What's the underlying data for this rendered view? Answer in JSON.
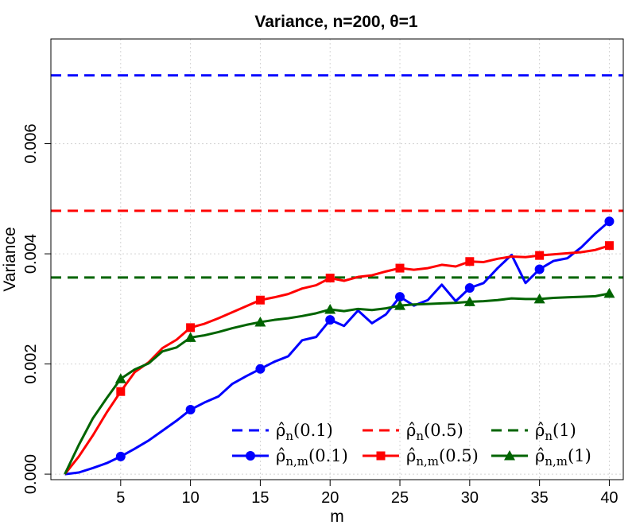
{
  "chart_data": {
    "type": "line",
    "title": "Variance, n=200, θ=1",
    "xlabel": "m",
    "ylabel": "Variance",
    "xlim": [
      0,
      41
    ],
    "ylim": [
      -0.0001,
      0.0079
    ],
    "x_ticks": [
      5,
      10,
      15,
      20,
      25,
      30,
      35,
      40
    ],
    "x_tick_labels": [
      "5",
      "10",
      "15",
      "20",
      "25",
      "30",
      "35",
      "40"
    ],
    "y_ticks": [
      0,
      0.002,
      0.004,
      0.006
    ],
    "y_tick_labels": [
      "0.000",
      "0.002",
      "0.004",
      "0.006"
    ],
    "grid": true,
    "legend_position": "bottom-right",
    "reference_lines": [
      {
        "name": "ρ̂n(0.1)",
        "legend_main": "ρ̂",
        "legend_sub": "n",
        "legend_arg": "(0.1)",
        "y": 0.00724,
        "color": "#0000ff",
        "style": "dashed"
      },
      {
        "name": "ρ̂n(0.5)",
        "legend_main": "ρ̂",
        "legend_sub": "n",
        "legend_arg": "(0.5)",
        "y": 0.00478,
        "color": "#ff0000",
        "style": "dashed"
      },
      {
        "name": "ρ̂n(1)",
        "legend_main": "ρ̂",
        "legend_sub": "n",
        "legend_arg": "(1)",
        "y": 0.00357,
        "color": "#006400",
        "style": "dashed"
      }
    ],
    "x": [
      1,
      2,
      3,
      4,
      5,
      6,
      7,
      8,
      9,
      10,
      11,
      12,
      13,
      14,
      15,
      16,
      17,
      18,
      19,
      20,
      21,
      22,
      23,
      24,
      25,
      26,
      27,
      28,
      29,
      30,
      31,
      32,
      33,
      34,
      35,
      36,
      37,
      38,
      39,
      40
    ],
    "series": [
      {
        "name": "ρ̂n,m(0.1)",
        "legend_main": "ρ̂",
        "legend_sub": "n,m",
        "legend_arg": "(0.1)",
        "color": "#0000ff",
        "marker": "circle",
        "values": [
          0,
          3e-05,
          0.00011,
          0.0002,
          0.00032,
          0.00046,
          0.00061,
          0.00079,
          0.00097,
          0.00117,
          0.0013,
          0.00141,
          0.00164,
          0.00178,
          0.00191,
          0.00204,
          0.00214,
          0.00243,
          0.00249,
          0.0028,
          0.00269,
          0.00297,
          0.00274,
          0.0029,
          0.00322,
          0.00306,
          0.00316,
          0.00344,
          0.00314,
          0.00338,
          0.00347,
          0.00374,
          0.00398,
          0.00347,
          0.00372,
          0.00387,
          0.00392,
          0.00412,
          0.00437,
          0.00459
        ]
      },
      {
        "name": "ρ̂n,m(0.5)",
        "legend_main": "ρ̂",
        "legend_sub": "n,m",
        "legend_arg": "(0.5)",
        "color": "#ff0000",
        "marker": "square",
        "values": [
          0,
          0.00032,
          0.0007,
          0.00112,
          0.0015,
          0.00185,
          0.00203,
          0.00229,
          0.00244,
          0.00266,
          0.00273,
          0.00283,
          0.00294,
          0.00305,
          0.00316,
          0.00321,
          0.00327,
          0.00337,
          0.00343,
          0.00356,
          0.00351,
          0.00358,
          0.00361,
          0.00368,
          0.00374,
          0.00371,
          0.00374,
          0.0038,
          0.00377,
          0.00386,
          0.00385,
          0.00391,
          0.00395,
          0.00394,
          0.00397,
          0.00399,
          0.00401,
          0.00403,
          0.00407,
          0.00415
        ]
      },
      {
        "name": "ρ̂n,m(1)",
        "legend_main": "ρ̂",
        "legend_sub": "n,m",
        "legend_arg": "(1)",
        "color": "#006400",
        "marker": "triangle",
        "values": [
          0,
          0.00053,
          0.00101,
          0.00138,
          0.00173,
          0.0019,
          0.00201,
          0.00223,
          0.0023,
          0.00248,
          0.00252,
          0.00258,
          0.00265,
          0.00271,
          0.00276,
          0.0028,
          0.00283,
          0.00287,
          0.00292,
          0.00299,
          0.00296,
          0.003,
          0.00298,
          0.00301,
          0.00306,
          0.00308,
          0.00309,
          0.0031,
          0.00311,
          0.00313,
          0.00314,
          0.00316,
          0.00319,
          0.00318,
          0.00318,
          0.0032,
          0.00321,
          0.00322,
          0.00323,
          0.00328
        ]
      }
    ]
  }
}
